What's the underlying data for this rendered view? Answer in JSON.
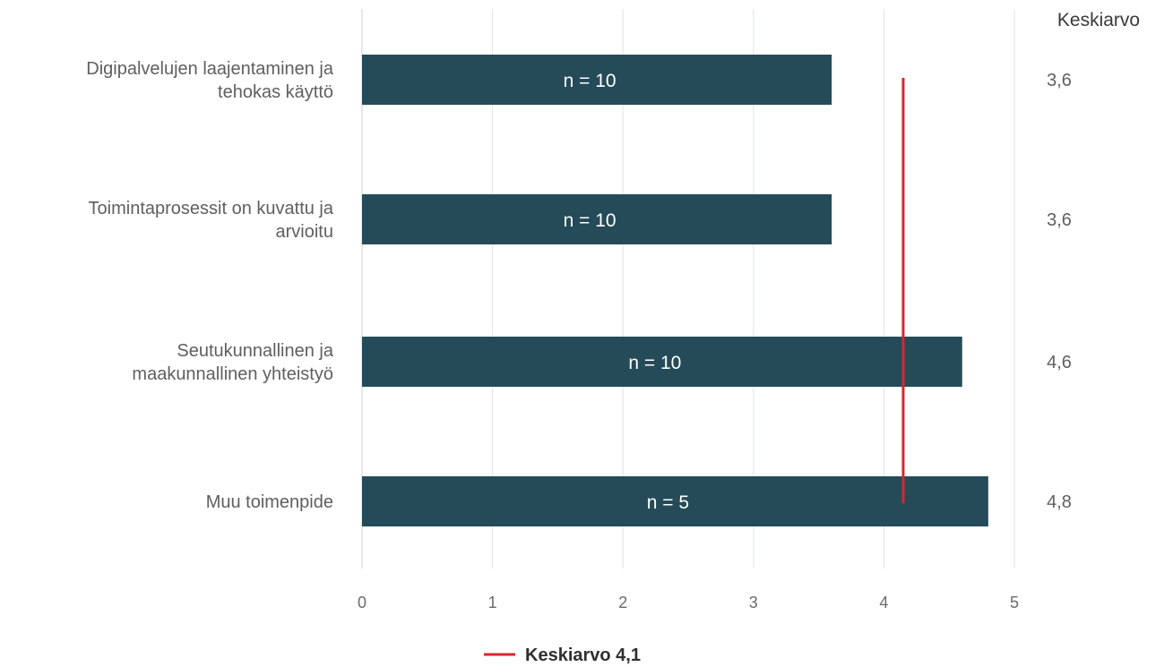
{
  "chart_data": {
    "type": "bar",
    "orientation": "horizontal",
    "categories": [
      [
        "Digipalvelujen laajentaminen ja",
        "tehokas käyttö"
      ],
      [
        "Toimintaprosessit on kuvattu ja",
        "arvioitu"
      ],
      [
        "Seutukunnallinen ja",
        "maakunnallinen yhteistyö"
      ],
      [
        "Muu toimenpide"
      ]
    ],
    "values": [
      3.6,
      3.6,
      4.6,
      4.8
    ],
    "bar_labels": [
      "n = 10",
      "n = 10",
      "n = 10",
      "n = 5"
    ],
    "average_column": {
      "header": "Keskiarvo",
      "values": [
        "3,6",
        "3,6",
        "4,6",
        "4,8"
      ]
    },
    "reference_line": {
      "value": 4.1,
      "label": "Keskiarvo 4,1",
      "color": "#d7262b"
    },
    "xlim": [
      0,
      5
    ],
    "x_ticks": [
      0,
      1,
      2,
      3,
      4,
      5
    ],
    "grid": true,
    "legend_position": "bottom-center",
    "bar_color": "#254b59",
    "xlabel": "",
    "ylabel": "",
    "title": ""
  }
}
